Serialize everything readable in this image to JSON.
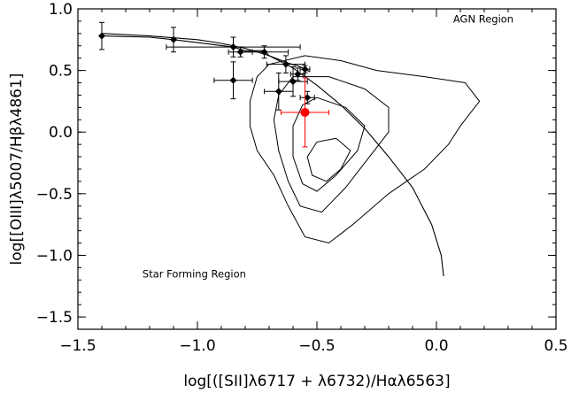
{
  "chart_data": {
    "type": "scatter",
    "xlabel": "log[([SII]λ6717 + λ6732)/Hαλ6563]",
    "ylabel": "log[[OIII]λ5007/Hβλ4861]",
    "xlim": [
      -1.5,
      0.5
    ],
    "ylim": [
      -1.6,
      1.0
    ],
    "xticks": [
      "−1.5",
      "−1.0",
      "−0.5",
      "0.0",
      "0.5"
    ],
    "yticks": [
      "−1.5",
      "−1.0",
      "−0.5",
      "0.0",
      "0.5",
      "1.0"
    ],
    "xtick_values": [
      -1.5,
      -1.0,
      -0.5,
      0.0,
      0.5
    ],
    "ytick_values": [
      -1.5,
      -1.0,
      -0.5,
      0.0,
      0.5,
      1.0
    ],
    "grid": false,
    "annotations": [
      {
        "text": "AGN Region",
        "x": 0.07,
        "y": 0.89
      },
      {
        "text": "Star Forming Region",
        "x": -1.23,
        "y": -1.18
      }
    ],
    "demarcation_curve": [
      [
        -1.4,
        0.8
      ],
      [
        -1.2,
        0.78
      ],
      [
        -1.0,
        0.75
      ],
      [
        -0.9,
        0.72
      ],
      [
        -0.8,
        0.68
      ],
      [
        -0.7,
        0.62
      ],
      [
        -0.6,
        0.52
      ],
      [
        -0.5,
        0.38
      ],
      [
        -0.4,
        0.22
      ],
      [
        -0.3,
        0.03
      ],
      [
        -0.2,
        -0.2
      ],
      [
        -0.1,
        -0.45
      ],
      [
        -0.02,
        -0.75
      ],
      [
        0.02,
        -1.0
      ],
      [
        0.03,
        -1.17
      ]
    ],
    "track": [
      [
        -1.4,
        0.78
      ],
      [
        -1.2,
        0.77
      ],
      [
        -1.1,
        0.75
      ],
      [
        -0.93,
        0.71
      ],
      [
        -0.85,
        0.69
      ],
      [
        -0.8,
        0.66
      ],
      [
        -0.75,
        0.66
      ],
      [
        -0.72,
        0.66
      ],
      [
        -0.7,
        0.62
      ],
      [
        -0.62,
        0.56
      ],
      [
        -0.57,
        0.53
      ],
      [
        -0.53,
        0.49
      ]
    ],
    "contours": [
      [
        [
          -0.7,
          0.55
        ],
        [
          -0.55,
          0.62
        ],
        [
          -0.4,
          0.58
        ],
        [
          -0.25,
          0.5
        ],
        [
          -0.05,
          0.45
        ],
        [
          0.12,
          0.4
        ],
        [
          0.18,
          0.25
        ],
        [
          0.1,
          0.05
        ],
        [
          0.05,
          -0.1
        ],
        [
          -0.05,
          -0.3
        ],
        [
          -0.2,
          -0.5
        ],
        [
          -0.35,
          -0.75
        ],
        [
          -0.45,
          -0.9
        ],
        [
          -0.55,
          -0.85
        ],
        [
          -0.62,
          -0.6
        ],
        [
          -0.68,
          -0.35
        ],
        [
          -0.75,
          -0.15
        ],
        [
          -0.78,
          0.05
        ],
        [
          -0.78,
          0.25
        ],
        [
          -0.75,
          0.45
        ],
        [
          -0.7,
          0.55
        ]
      ],
      [
        [
          -0.6,
          0.45
        ],
        [
          -0.45,
          0.45
        ],
        [
          -0.3,
          0.35
        ],
        [
          -0.2,
          0.2
        ],
        [
          -0.2,
          0.0
        ],
        [
          -0.28,
          -0.2
        ],
        [
          -0.38,
          -0.45
        ],
        [
          -0.48,
          -0.65
        ],
        [
          -0.57,
          -0.6
        ],
        [
          -0.62,
          -0.4
        ],
        [
          -0.66,
          -0.15
        ],
        [
          -0.68,
          0.1
        ],
        [
          -0.66,
          0.3
        ],
        [
          -0.6,
          0.45
        ]
      ],
      [
        [
          -0.5,
          0.28
        ],
        [
          -0.38,
          0.2
        ],
        [
          -0.3,
          0.05
        ],
        [
          -0.33,
          -0.15
        ],
        [
          -0.42,
          -0.35
        ],
        [
          -0.5,
          -0.48
        ],
        [
          -0.56,
          -0.42
        ],
        [
          -0.6,
          -0.2
        ],
        [
          -0.6,
          0.05
        ],
        [
          -0.56,
          0.22
        ],
        [
          -0.5,
          0.28
        ]
      ],
      [
        [
          -0.42,
          -0.05
        ],
        [
          -0.36,
          -0.15
        ],
        [
          -0.4,
          -0.3
        ],
        [
          -0.46,
          -0.4
        ],
        [
          -0.52,
          -0.35
        ],
        [
          -0.54,
          -0.2
        ],
        [
          -0.5,
          -0.08
        ],
        [
          -0.42,
          -0.05
        ]
      ]
    ],
    "series": [
      {
        "marker": "diamond",
        "color": "#000000",
        "points": [
          {
            "x": -1.4,
            "y": 0.78,
            "xerr": 0.0,
            "yerr": 0.11
          },
          {
            "x": -1.1,
            "y": 0.75,
            "xerr": 0.0,
            "yerr": 0.1
          },
          {
            "x": -0.85,
            "y": 0.69,
            "xerr": 0.28,
            "yerr": 0.08
          },
          {
            "x": -0.82,
            "y": 0.65,
            "xerr": 0.05,
            "yerr": 0.04
          },
          {
            "x": -0.85,
            "y": 0.42,
            "xerr": 0.08,
            "yerr": 0.15
          },
          {
            "x": -0.72,
            "y": 0.65,
            "xerr": 0.1,
            "yerr": 0.05
          },
          {
            "x": -0.63,
            "y": 0.55,
            "xerr": 0.08,
            "yerr": 0.07
          },
          {
            "x": -0.66,
            "y": 0.33,
            "xerr": 0.06,
            "yerr": 0.15
          },
          {
            "x": -0.6,
            "y": 0.41,
            "xerr": 0.06,
            "yerr": 0.12
          },
          {
            "x": -0.58,
            "y": 0.47,
            "xerr": 0.03,
            "yerr": 0.05
          },
          {
            "x": -0.54,
            "y": 0.28,
            "xerr": 0.03,
            "yerr": 0.05
          },
          {
            "x": -0.55,
            "y": 0.51,
            "xerr": 0.02,
            "yerr": 0.03
          }
        ]
      },
      {
        "marker": "circle",
        "color": "#ff0000",
        "points": [
          {
            "x": -0.55,
            "y": 0.16,
            "xerr": 0.1,
            "yerr": 0.28
          }
        ]
      }
    ]
  }
}
